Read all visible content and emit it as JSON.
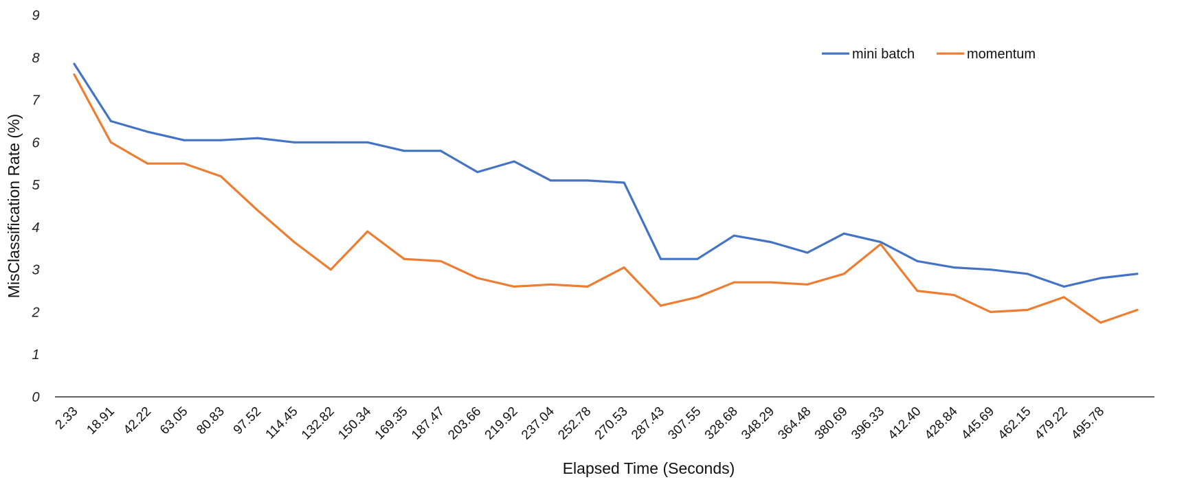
{
  "chart_data": {
    "type": "line",
    "title": "",
    "xlabel": "Elapsed Time (Seconds)",
    "ylabel": "MisClassification Rate (%)",
    "ylim": [
      0,
      9
    ],
    "yticks": [
      "0",
      "1",
      "2",
      "3",
      "4",
      "5",
      "6",
      "7",
      "8",
      "9"
    ],
    "categories": [
      "2.33",
      "18.91",
      "42.22",
      "63.05",
      "80.83",
      "97.52",
      "114.45",
      "132.82",
      "150.34",
      "169.35",
      "187.47",
      "203.66",
      "219.92",
      "237.04",
      "252.78",
      "270.53",
      "287.43",
      "307.55",
      "328.68",
      "348.29",
      "364.48",
      "380.69",
      "396.33",
      "412.40",
      "428.84",
      "445.69",
      "462.15",
      "479.22",
      "495.78",
      ""
    ],
    "grid": false,
    "legend_position": "top-right",
    "series": [
      {
        "name": "mini batch",
        "color": "#4472C4",
        "values": [
          7.85,
          6.5,
          6.25,
          6.05,
          6.05,
          6.1,
          6.0,
          6.0,
          6.0,
          5.8,
          5.8,
          5.3,
          5.55,
          5.1,
          5.1,
          5.05,
          3.25,
          3.25,
          3.8,
          3.65,
          3.4,
          3.85,
          3.65,
          3.2,
          3.05,
          3.0,
          2.9,
          2.6,
          2.8,
          2.9
        ]
      },
      {
        "name": "momentum",
        "color": "#ED7D31",
        "values": [
          7.6,
          6.0,
          5.5,
          5.5,
          5.2,
          4.4,
          3.65,
          3.0,
          3.9,
          3.25,
          3.2,
          2.8,
          2.6,
          2.65,
          2.6,
          3.05,
          2.15,
          2.35,
          2.7,
          2.7,
          2.65,
          2.9,
          3.6,
          2.5,
          2.4,
          2.0,
          2.05,
          2.35,
          1.75,
          2.05
        ]
      }
    ]
  }
}
